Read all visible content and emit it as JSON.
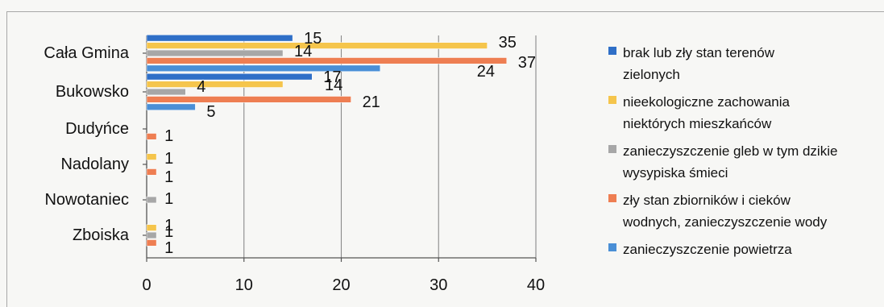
{
  "chart_data": {
    "type": "bar",
    "orientation": "horizontal",
    "title": "",
    "xlabel": "",
    "ylabel": "",
    "xlim": [
      0,
      40
    ],
    "x_ticks": [
      "0",
      "10",
      "20",
      "30",
      "40"
    ],
    "grid": true,
    "legend_position": "right",
    "categories": [
      "Cała Gmina",
      "Bukowsko",
      "Dudyńce",
      "Nadolany",
      "Nowotaniec",
      "Zboiska"
    ],
    "series": [
      {
        "name_lines": [
          "brak lub zły stan terenów",
          "zielonych"
        ],
        "color": "#2f6fc7",
        "values": [
          15,
          17,
          null,
          null,
          null,
          null
        ]
      },
      {
        "name_lines": [
          "nieekologiczne zachowania",
          "niektórych mieszkańców"
        ],
        "color": "#f5c54c",
        "values": [
          35,
          14,
          null,
          1,
          null,
          1
        ]
      },
      {
        "name_lines": [
          "zanieczyszczenie gleb w tym dzikie",
          "wysypiska śmieci"
        ],
        "color": "#a7a7a7",
        "values": [
          14,
          4,
          null,
          null,
          1,
          1
        ]
      },
      {
        "name_lines": [
          "zły stan zbiorników i cieków",
          "wodnych, zanieczyszczenie wody"
        ],
        "color": "#ee7e52",
        "values": [
          37,
          21,
          1,
          1,
          null,
          1
        ]
      },
      {
        "name_lines": [
          "zanieczyszczenie powietrza"
        ],
        "color": "#4a8fd6",
        "values": [
          24,
          5,
          null,
          null,
          null,
          null
        ]
      }
    ]
  }
}
